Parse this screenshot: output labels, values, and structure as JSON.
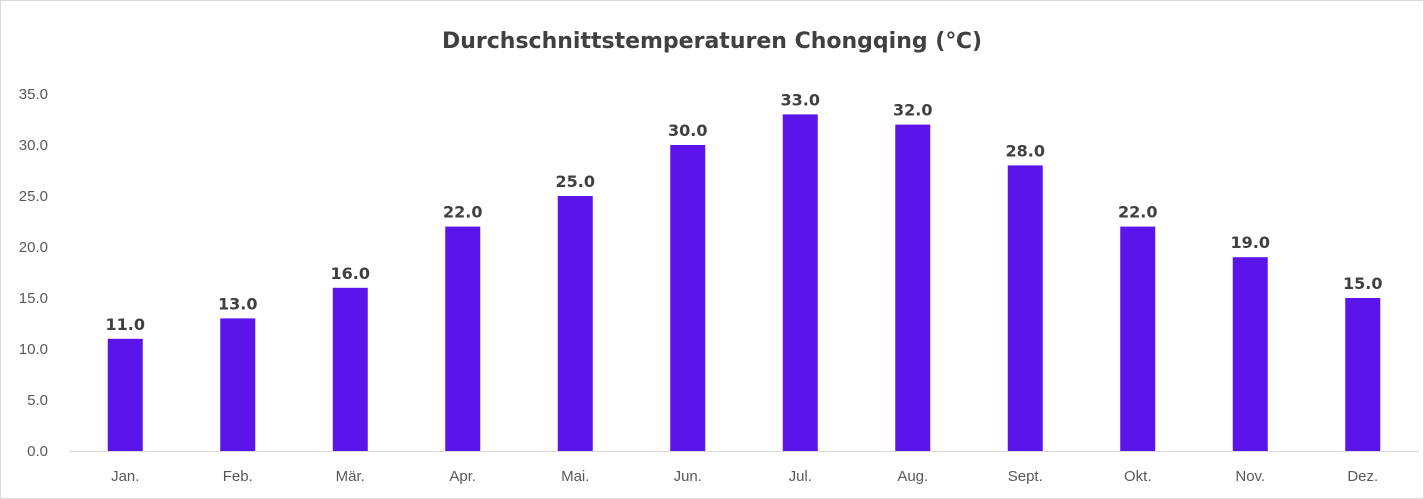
{
  "chart_data": {
    "type": "bar",
    "title": "Durchschnittstemperaturen Chongqing (℃)",
    "xlabel": "",
    "ylabel": "",
    "categories": [
      "Jan.",
      "Feb.",
      "Mär.",
      "Apr.",
      "Mai.",
      "Jun.",
      "Jul.",
      "Aug.",
      "Sept.",
      "Okt.",
      "Nov.",
      "Dez."
    ],
    "values": [
      11.0,
      13.0,
      16.0,
      22.0,
      25.0,
      30.0,
      33.0,
      32.0,
      28.0,
      22.0,
      19.0,
      15.0
    ],
    "ylim": [
      0,
      35
    ],
    "yticks": [
      "0.0",
      "5.0",
      "10.0",
      "15.0",
      "20.0",
      "25.0",
      "30.0",
      "35.0"
    ],
    "data_labels": [
      "11.0",
      "13.0",
      "16.0",
      "22.0",
      "25.0",
      "30.0",
      "33.0",
      "32.0",
      "28.0",
      "22.0",
      "19.0",
      "15.0"
    ],
    "bar_color": "#5b14ea",
    "axis_color": "#d9d9d9",
    "grid": false,
    "legend": "none"
  }
}
